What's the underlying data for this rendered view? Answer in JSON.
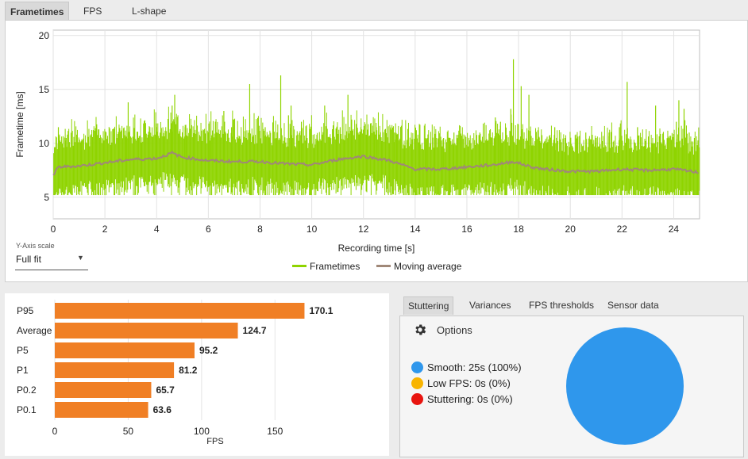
{
  "tabs": [
    "Frametimes",
    "FPS",
    "L-shape"
  ],
  "frametime_chart": {
    "type": "line",
    "ylabel": "Frametime [ms]",
    "xlabel": "Recording time [s]",
    "ylim": [
      3,
      20.5
    ],
    "xlim": [
      0,
      25
    ],
    "yticks": [
      "5",
      "10",
      "15",
      "20"
    ],
    "xticks": [
      "0",
      "2",
      "4",
      "6",
      "8",
      "10",
      "12",
      "14",
      "16",
      "18",
      "20",
      "22",
      "24"
    ],
    "series": [
      {
        "name": "Frametimes",
        "color": "#8fd400"
      },
      {
        "name": "Moving average",
        "color": "#a08878"
      }
    ],
    "moving_average": [
      [
        0,
        7.0
      ],
      [
        0.2,
        7.8
      ],
      [
        1,
        7.9
      ],
      [
        2,
        8.2
      ],
      [
        3,
        8.5
      ],
      [
        4,
        8.6
      ],
      [
        4.6,
        9.1
      ],
      [
        5,
        8.7
      ],
      [
        6,
        8.4
      ],
      [
        7,
        8.3
      ],
      [
        8,
        8.3
      ],
      [
        9,
        8.1
      ],
      [
        10,
        8.0
      ],
      [
        11,
        8.5
      ],
      [
        12,
        8.8
      ],
      [
        13,
        8.4
      ],
      [
        14,
        7.6
      ],
      [
        15,
        7.6
      ],
      [
        16,
        7.8
      ],
      [
        17,
        8.0
      ],
      [
        17.8,
        8.3
      ],
      [
        18.5,
        7.8
      ],
      [
        19,
        7.6
      ],
      [
        20,
        7.4
      ],
      [
        21,
        7.4
      ],
      [
        22,
        7.6
      ],
      [
        23,
        7.5
      ],
      [
        24,
        7.6
      ],
      [
        25,
        7.3
      ]
    ],
    "spikes": [
      [
        0.2,
        11.5
      ],
      [
        0.5,
        10.5
      ],
      [
        1.8,
        10.5
      ],
      [
        2.8,
        10.5
      ],
      [
        2.9,
        11
      ],
      [
        2.9,
        13.8
      ],
      [
        3.3,
        10.5
      ],
      [
        4.0,
        11.5
      ],
      [
        4.6,
        13.5
      ],
      [
        4.7,
        14.5
      ],
      [
        5.1,
        11.5
      ],
      [
        6.1,
        10.5
      ],
      [
        6.6,
        13
      ],
      [
        6.9,
        11.5
      ],
      [
        7.6,
        15.5
      ],
      [
        8.2,
        11.5
      ],
      [
        8.8,
        16.3
      ],
      [
        9.1,
        12.6
      ],
      [
        9.2,
        13.5
      ],
      [
        9.6,
        12
      ],
      [
        10.2,
        10.8
      ],
      [
        10.5,
        13.5
      ],
      [
        11.1,
        11.5
      ],
      [
        11.4,
        14.5
      ],
      [
        11.9,
        11.5
      ],
      [
        12.5,
        11.5
      ],
      [
        13.2,
        11
      ],
      [
        14.4,
        10.5
      ],
      [
        15.1,
        10.5
      ],
      [
        15.5,
        11
      ],
      [
        16.5,
        11
      ],
      [
        17.1,
        12.4
      ],
      [
        17.3,
        12
      ],
      [
        17.7,
        13.2
      ],
      [
        17.8,
        17.8
      ],
      [
        18.1,
        15.3
      ],
      [
        18.4,
        14.5
      ],
      [
        18.8,
        10.5
      ],
      [
        19.1,
        10.5
      ],
      [
        19.4,
        11.5
      ],
      [
        19.8,
        10.5
      ],
      [
        20.6,
        11
      ],
      [
        21.0,
        10.5
      ],
      [
        21.5,
        11
      ],
      [
        21.9,
        11.5
      ],
      [
        22.2,
        15.7
      ],
      [
        22.6,
        11.5
      ],
      [
        23.3,
        13.5
      ],
      [
        23.6,
        11
      ],
      [
        24.1,
        12
      ],
      [
        24.2,
        14
      ],
      [
        24.4,
        13.2
      ],
      [
        24.6,
        11
      ],
      [
        24.8,
        10.5
      ]
    ],
    "y_axis_scale_label": "Y-Axis scale",
    "y_axis_scale_value": "Full fit"
  },
  "fps_bars": {
    "type": "bar",
    "xlabel": "FPS",
    "xlim": [
      0,
      185
    ],
    "xticks": [
      "0",
      "50",
      "100",
      "150"
    ],
    "categories": [
      "P95",
      "Average",
      "P5",
      "P1",
      "P0.2",
      "P0.1"
    ],
    "values": [
      170.1,
      124.7,
      95.2,
      81.2,
      65.7,
      63.6
    ],
    "value_labels": [
      "170.1",
      "124.7",
      "95.2",
      "81.2",
      "65.7",
      "63.6"
    ],
    "color": "#f07f25"
  },
  "analysis_tabs": [
    "Stuttering",
    "Variances",
    "FPS thresholds",
    "Sensor data"
  ],
  "stuttering": {
    "options_label": "Options",
    "legend": [
      {
        "label": "Smooth:",
        "value": "25s (100%)",
        "color": "#2f97ec"
      },
      {
        "label": "Low FPS:",
        "value": "0s (0%)",
        "color": "#f8b400"
      },
      {
        "label": "Stuttering:",
        "value": "0s (0%)",
        "color": "#e8140f"
      }
    ],
    "pie": [
      {
        "name": "Smooth",
        "value": 100,
        "color": "#2f97ec"
      }
    ]
  }
}
